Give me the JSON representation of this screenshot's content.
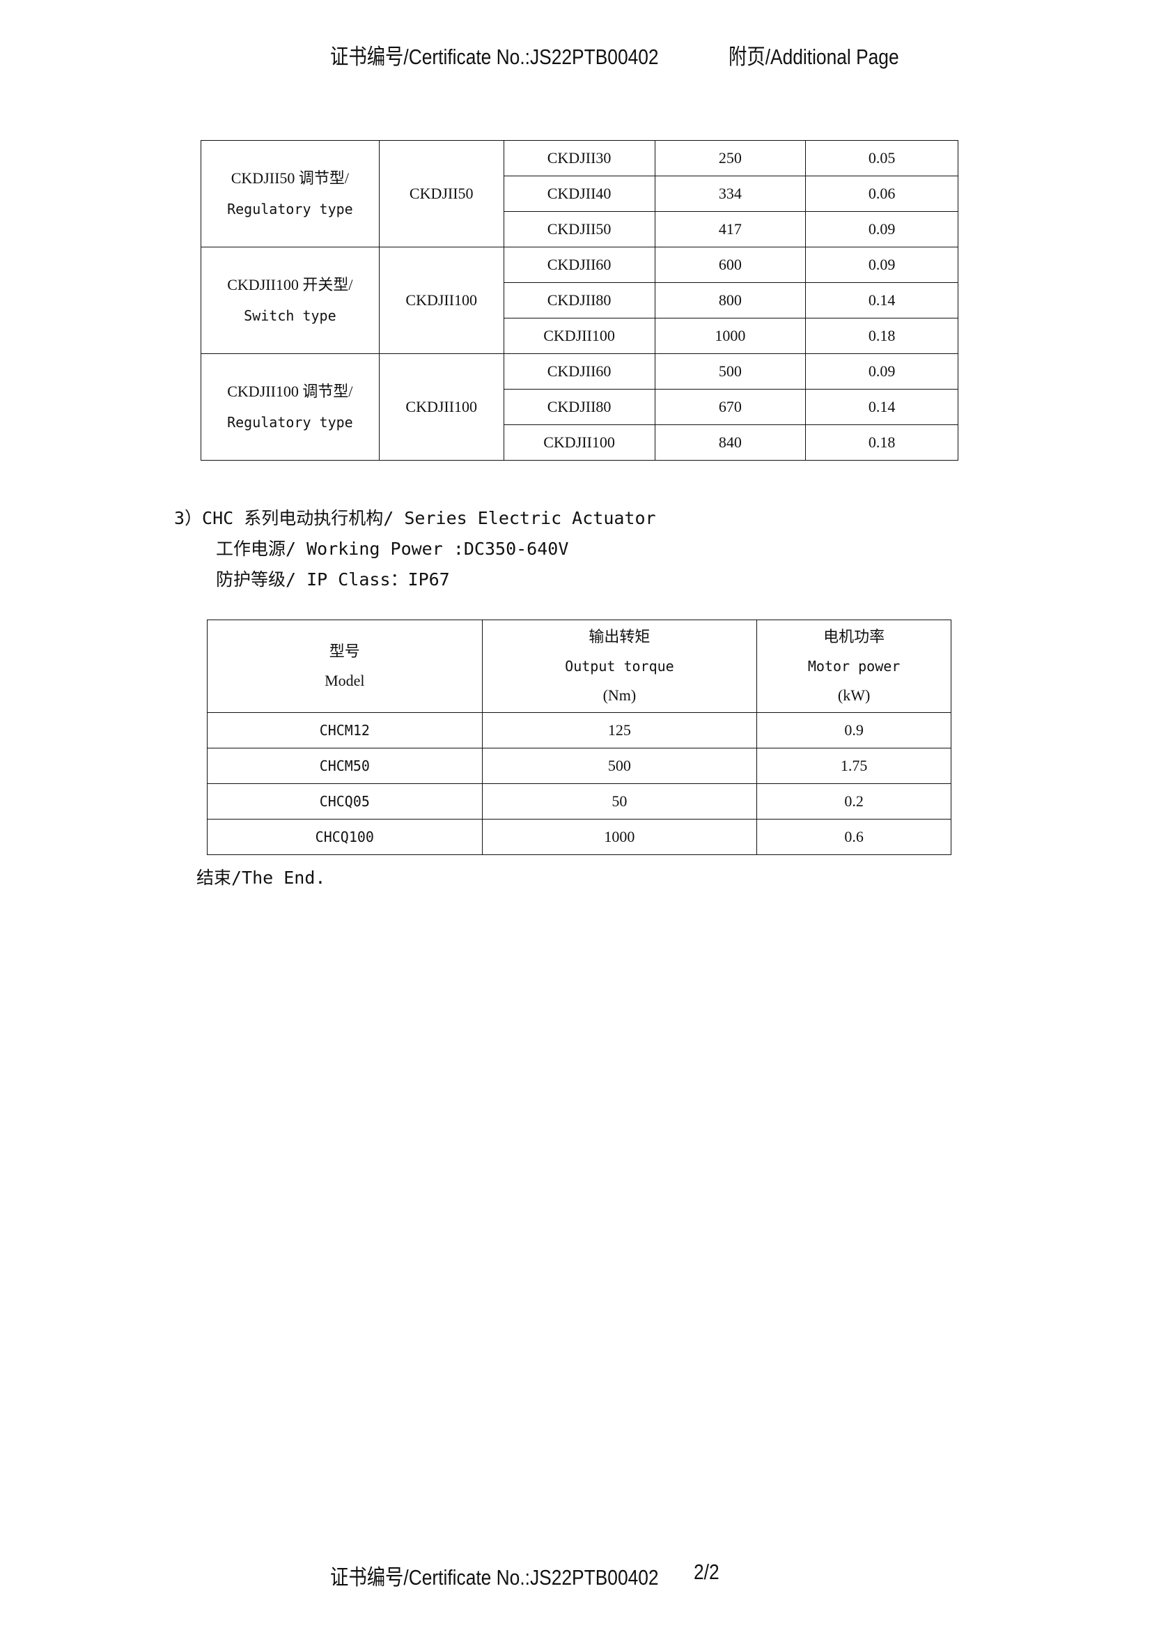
{
  "header": {
    "certificate": "证书编号/Certificate No.:JS22PTB00402",
    "page_label": "附页/Additional Page"
  },
  "table1": {
    "groups": [
      {
        "type_cn": "CKDJII50 调节型/",
        "type_en": "Regulatory type",
        "series": "CKDJII50",
        "rows": [
          [
            "CKDJII30",
            "250",
            "0.05"
          ],
          [
            "CKDJII40",
            "334",
            "0.06"
          ],
          [
            "CKDJII50",
            "417",
            "0.09"
          ]
        ]
      },
      {
        "type_cn": "CKDJII100 开关型/",
        "type_en": "Switch type",
        "series": "CKDJII100",
        "rows": [
          [
            "CKDJII60",
            "600",
            "0.09"
          ],
          [
            "CKDJII80",
            "800",
            "0.14"
          ],
          [
            "CKDJII100",
            "1000",
            "0.18"
          ]
        ]
      },
      {
        "type_cn": "CKDJII100 调节型/",
        "type_en": "Regulatory type",
        "series": "CKDJII100",
        "rows": [
          [
            "CKDJII60",
            "500",
            "0.09"
          ],
          [
            "CKDJII80",
            "670",
            "0.14"
          ],
          [
            "CKDJII100",
            "840",
            "0.18"
          ]
        ]
      }
    ]
  },
  "section3": {
    "title": "3）CHC 系列电动执行机构/ Series Electric Actuator",
    "power": "工作电源/ Working Power :DC350-640V",
    "ip": "防护等级/ IP Class：IP67"
  },
  "table2": {
    "headers": [
      {
        "cn": "型号",
        "en": "Model",
        "unit": ""
      },
      {
        "cn": "输出转矩",
        "en": "Output torque",
        "unit": "(Nm)"
      },
      {
        "cn": "电机功率",
        "en": "Motor power",
        "unit": "(kW)"
      }
    ],
    "rows": [
      [
        "CHCM12",
        "125",
        "0.9"
      ],
      [
        "CHCM50",
        "500",
        "1.75"
      ],
      [
        "CHCQ05",
        "50",
        "0.2"
      ],
      [
        "CHCQ100",
        "1000",
        "0.6"
      ]
    ]
  },
  "end_text": "结束/The End.",
  "footer": {
    "certificate": "证书编号/Certificate No.:JS22PTB00402",
    "page_number": "2/2"
  }
}
